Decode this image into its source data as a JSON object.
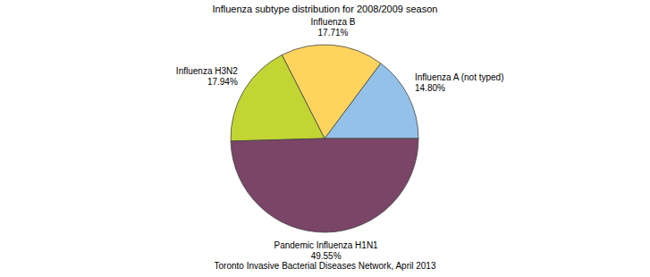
{
  "chart_data": {
    "type": "pie",
    "title": "Influenza subtype distribution for 2008/2009 season",
    "categories": [
      "Influenza A (not typed)",
      "Influenza B",
      "Influenza H3N2",
      "Pandemic Influenza H1N1"
    ],
    "values": [
      14.8,
      17.71,
      17.94,
      49.55
    ],
    "value_labels": [
      "14.80%",
      "17.71%",
      "17.94%",
      "49.55%"
    ],
    "colors": [
      "#93c1e9",
      "#fed45f",
      "#c2d532",
      "#7a4567"
    ],
    "data_labels": true,
    "annotations": [
      "Toronto Invasive Bacterial Diseases Network, April 2013"
    ]
  }
}
